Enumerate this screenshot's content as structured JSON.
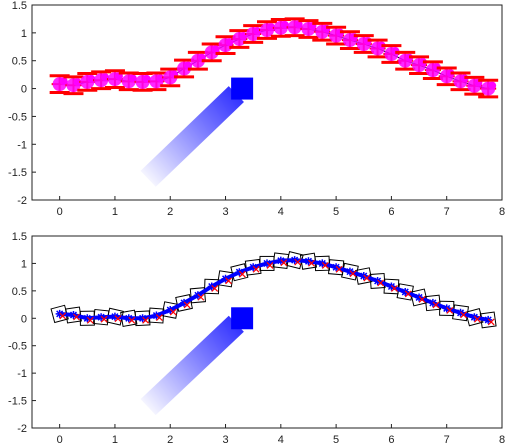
{
  "chart_data": [
    {
      "type": "scatter",
      "xlim": [
        -0.5,
        8
      ],
      "ylim": [
        -2,
        1.5
      ],
      "x_ticks": [
        0,
        1,
        2,
        3,
        4,
        5,
        6,
        7,
        8
      ],
      "y_ticks": [
        1.5,
        1,
        0.5,
        0,
        -0.5,
        -1,
        -1.5,
        -2
      ],
      "grid": false,
      "colors": {
        "markers": "#ff00ff",
        "errorbars": "#ff0000",
        "trajectory": "#000000",
        "arrow": "#0000ff"
      },
      "series": [
        {
          "x": [
            0,
            0.25,
            0.5,
            0.75,
            1,
            1.25,
            1.5,
            1.75,
            2,
            2.25,
            2.5,
            2.75,
            3,
            3.25,
            3.5,
            3.75,
            4,
            4.25,
            4.5,
            4.75,
            5,
            5.25,
            5.5,
            5.75,
            6,
            6.25,
            6.5,
            6.75,
            7,
            7.25,
            7.5,
            7.75
          ],
          "y": [
            0.08,
            0.06,
            0.12,
            0.15,
            0.17,
            0.13,
            0.12,
            0.13,
            0.2,
            0.36,
            0.5,
            0.65,
            0.78,
            0.89,
            0.98,
            1.05,
            1.09,
            1.1,
            1.07,
            1.02,
            0.95,
            0.87,
            0.8,
            0.72,
            0.62,
            0.5,
            0.42,
            0.33,
            0.22,
            0.13,
            0.05,
            0.0
          ],
          "y_error": 0.15
        }
      ],
      "arrow": {
        "tail": [
          1.6,
          -1.62
        ],
        "head": [
          3.3,
          0.0
        ]
      }
    },
    {
      "type": "scatter",
      "xlim": [
        -0.5,
        8
      ],
      "ylim": [
        -2,
        1.5
      ],
      "x_ticks": [
        0,
        1,
        2,
        3,
        4,
        5,
        6,
        7,
        8
      ],
      "y_ticks": [
        1.5,
        1,
        0.5,
        0,
        -0.5,
        -1,
        -1.5,
        -2
      ],
      "grid": false,
      "colors": {
        "markers": "#0000ff",
        "cross_markers": "#ff0000",
        "outline_boxes": "#000000",
        "arrow": "#0000ff"
      },
      "series": [
        {
          "x": [
            0,
            0.25,
            0.5,
            0.75,
            1,
            1.25,
            1.5,
            1.75,
            2,
            2.25,
            2.5,
            2.75,
            3,
            3.25,
            3.5,
            3.75,
            4,
            4.25,
            4.5,
            4.75,
            5,
            5.25,
            5.5,
            5.75,
            6,
            6.25,
            6.5,
            6.75,
            7,
            7.25,
            7.5,
            7.75
          ],
          "y": [
            0.08,
            0.06,
            0.0,
            0.02,
            0.03,
            0.0,
            0.0,
            0.05,
            0.15,
            0.28,
            0.42,
            0.58,
            0.72,
            0.84,
            0.93,
            1.0,
            1.05,
            1.06,
            1.04,
            1.0,
            0.93,
            0.85,
            0.77,
            0.68,
            0.58,
            0.48,
            0.38,
            0.28,
            0.18,
            0.1,
            0.02,
            -0.03
          ]
        }
      ],
      "arrow": {
        "tail": [
          1.6,
          -1.62
        ],
        "head": [
          3.3,
          0.0
        ]
      }
    }
  ]
}
